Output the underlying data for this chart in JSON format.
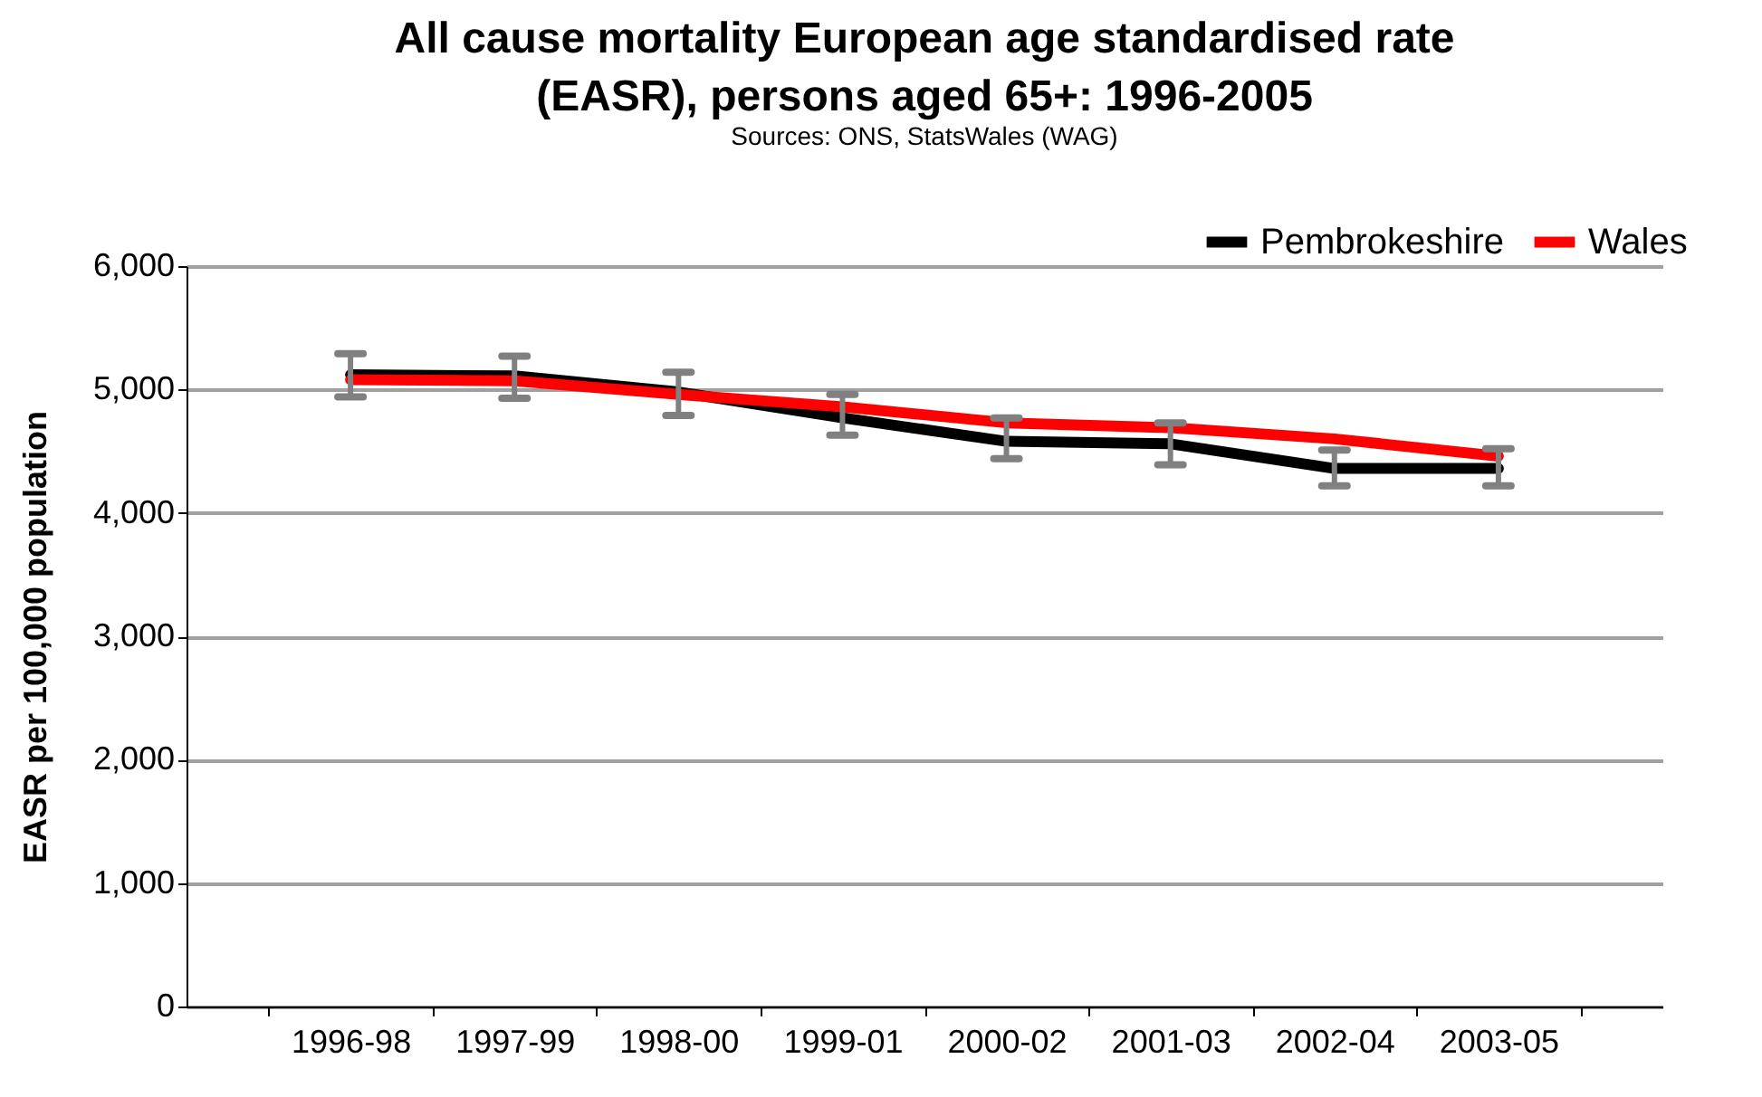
{
  "chart_data": {
    "type": "line",
    "title": [
      "All cause mortality European age standardised rate",
      "(EASR), persons aged 65+: 1996-2005"
    ],
    "subtitle": "Sources: ONS, StatsWales (WAG)",
    "ylabel": "EASR per 100,000 population",
    "categories": [
      "1996-98",
      "1997-99",
      "1998-00",
      "1999-01",
      "2000-02",
      "2001-03",
      "2002-04",
      "2003-05"
    ],
    "series": [
      {
        "name": "Pembrokeshire",
        "color": "#000000",
        "values": [
          5120,
          5110,
          4980,
          4770,
          4580,
          4560,
          4360,
          4360
        ],
        "errors": [
          [
            4940,
            5290
          ],
          [
            4930,
            5270
          ],
          [
            4790,
            5140
          ],
          [
            4630,
            4960
          ],
          [
            4440,
            4770
          ],
          [
            4390,
            4730
          ],
          [
            4220,
            4510
          ],
          [
            4220,
            4520
          ]
        ]
      },
      {
        "name": "Wales",
        "color": "#ff0000",
        "values": [
          5080,
          5070,
          4960,
          4860,
          4730,
          4690,
          4600,
          4460
        ]
      }
    ],
    "ylim": [
      0,
      6000
    ],
    "yticks": [
      0,
      {
        "value": 1000,
        "label": "1,000"
      },
      {
        "value": 2000,
        "label": "2,000"
      },
      {
        "value": 3000,
        "label": "3,000"
      },
      {
        "value": 4000,
        "label": "4,000"
      },
      {
        "value": 5000,
        "label": "5,000"
      },
      {
        "value": 6000,
        "label": "6,000"
      }
    ],
    "grid": "y",
    "legend": "top right",
    "marker": "none",
    "line_style": "solid"
  }
}
